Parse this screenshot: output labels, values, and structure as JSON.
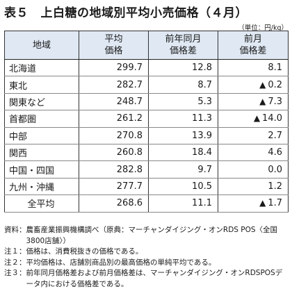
{
  "title": "表５　上白糖の地域別平均小売価格（４月）",
  "unit": "（単位：円/kg）",
  "table": {
    "headers": {
      "region": "地域",
      "price_l1": "平均",
      "price_l2": "価格",
      "yoy_l1": "前年同月",
      "yoy_l2": "価格差",
      "mom_l1": "前月",
      "mom_l2": "価格差"
    },
    "rows": [
      {
        "region": "北海道",
        "price": "299.7",
        "yoy": "12.8",
        "mom_sign": "",
        "mom": "8.1"
      },
      {
        "region": "東北",
        "price": "282.7",
        "yoy": "8.7",
        "mom_sign": "▲",
        "mom": "0.2"
      },
      {
        "region": "関東など",
        "price": "248.7",
        "yoy": "5.3",
        "mom_sign": "▲",
        "mom": "7.3"
      },
      {
        "region": "首都圏",
        "price": "261.2",
        "yoy": "11.3",
        "mom_sign": "▲",
        "mom": "14.0"
      },
      {
        "region": "中部",
        "price": "270.8",
        "yoy": "13.9",
        "mom_sign": "",
        "mom": "2.7"
      },
      {
        "region": "関西",
        "price": "260.8",
        "yoy": "18.4",
        "mom_sign": "",
        "mom": "4.6"
      },
      {
        "region": "中国・四国",
        "price": "282.8",
        "yoy": "9.7",
        "mom_sign": "",
        "mom": "0.0"
      },
      {
        "region": "九州・沖縄",
        "price": "277.7",
        "yoy": "10.5",
        "mom_sign": "",
        "mom": "1.2"
      }
    ],
    "average": {
      "region": "全平均",
      "price": "268.6",
      "yoy": "11.1",
      "mom_sign": "▲",
      "mom": "1.7"
    }
  },
  "notes": [
    {
      "label": "資料：",
      "text": "農畜産業振興機構調べ（原典：マーチャンダイジング・オンRDS POS〈全国3800店舗〉）"
    },
    {
      "label": "注１：",
      "text": "価格は、消費税抜きの価格である。"
    },
    {
      "label": "注２：",
      "text": "平均価格は、店舗別商品別の最高価格の単純平均である。"
    },
    {
      "label": "注３：",
      "text": "前年同月価格差および前月価格差は、マーチャンダイジング・オンRDSPOSデータ内における価格差である。"
    }
  ]
}
